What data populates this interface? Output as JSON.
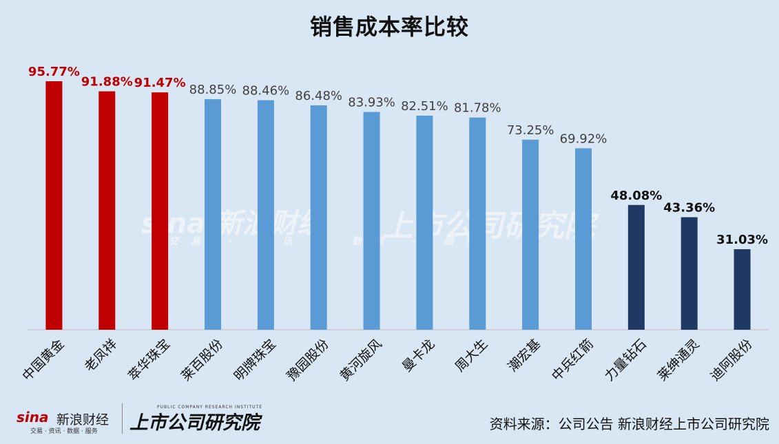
{
  "title": "销售成本率比较",
  "watermark": {
    "sina": "sina 新浪财经",
    "sina_sub": "交易 · 资讯 · 数据 · 服务",
    "brand": "上市公司研究院"
  },
  "footer": {
    "sina_logo": "sina",
    "sina_name": "新浪财经",
    "sina_sub": "交易 · 资讯 · 数据 · 服务",
    "brand": "上市公司研究院",
    "brand_sub": "PUBLIC COMPANY RESEARCH INSTITUTE",
    "source": "资料来源：公司公告 新浪财经上市公司研究院"
  },
  "chart_data": {
    "type": "bar",
    "title": "销售成本率比较",
    "categories": [
      "中国黄金",
      "老凤祥",
      "萃华珠宝",
      "莱百股份",
      "明牌珠宝",
      "豫园股份",
      "黄河旋风",
      "曼卡龙",
      "周大生",
      "潮宏基",
      "中兵红箭",
      "力量钻石",
      "莱绅通灵",
      "迪阿股份"
    ],
    "values": [
      95.77,
      91.88,
      91.47,
      88.85,
      88.46,
      86.48,
      83.93,
      82.51,
      81.78,
      73.25,
      69.92,
      48.08,
      43.36,
      31.03
    ],
    "labels": [
      "95.77%",
      "91.88%",
      "91.47%",
      "88.85%",
      "88.46%",
      "86.48%",
      "83.93%",
      "82.51%",
      "81.78%",
      "73.25%",
      "69.92%",
      "48.08%",
      "43.36%",
      "31.03%"
    ],
    "bar_colors": [
      "#c00000",
      "#c00000",
      "#c00000",
      "#5b9bd5",
      "#5b9bd5",
      "#5b9bd5",
      "#5b9bd5",
      "#5b9bd5",
      "#5b9bd5",
      "#5b9bd5",
      "#5b9bd5",
      "#1f3864",
      "#1f3864",
      "#1f3864"
    ],
    "label_colors": [
      "#c00000",
      "#c00000",
      "#c00000",
      "#404040",
      "#404040",
      "#404040",
      "#404040",
      "#404040",
      "#404040",
      "#404040",
      "#404040",
      "#111111",
      "#111111",
      "#111111"
    ],
    "ylim": [
      0,
      100
    ],
    "grid": false,
    "legend": "none",
    "xlabel": "",
    "ylabel": ""
  }
}
